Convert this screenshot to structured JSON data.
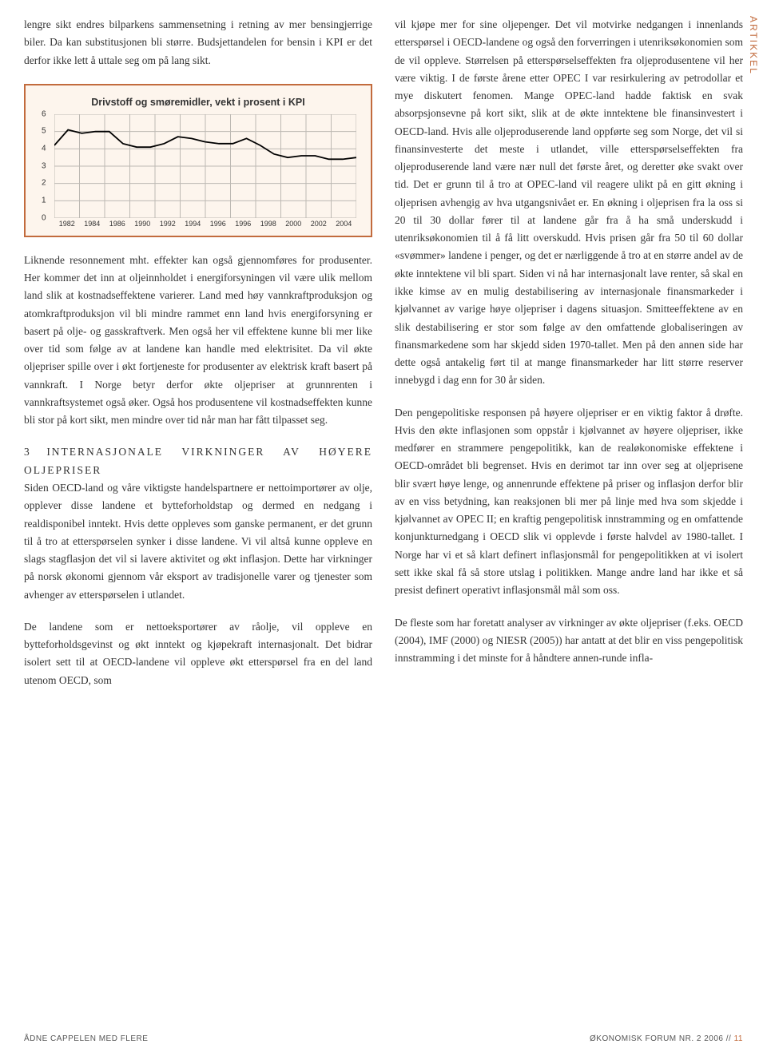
{
  "side_label": "ARTIKKEL",
  "left_column": {
    "p1": "lengre sikt endres bilparkens sammensetning i retning av mer bensingjerrige biler. Da kan substitusjonen bli større. Budsjettandelen for bensin i KPI er det derfor ikke lett å uttale seg om på lang sikt.",
    "p2": "Liknende resonnement mht. effekter kan også gjennomføres for produsenter. Her kommer det inn at oljeinnholdet i energiforsyningen vil være ulik mellom land slik at kostnadseffektene varierer. Land med høy vannkraftproduksjon og atomkraftproduksjon vil bli mindre rammet enn land hvis energiforsyning er basert på olje- og gasskraftverk. Men også her vil effektene kunne bli mer like over tid som følge av at landene kan handle med elektrisitet. Da vil økte oljepriser spille over i økt fortjeneste for produsenter av elektrisk kraft basert på vannkraft. I Norge betyr derfor økte oljepriser at grunnrenten i vannkraftsystemet også øker. Også hos produsentene vil kostnadseffekten kunne bli stor på kort sikt, men mindre over tid når man har fått tilpasset seg.",
    "section": {
      "num": "3",
      "title": "INTERNASJONALE VIRKNINGER AV HØYERE OLJEPRISER"
    },
    "p3": "Siden OECD-land og våre viktigste handelspartnere er nettoimportører av olje, opplever disse landene et bytteforholdstap og dermed en nedgang i realdisponibel inntekt. Hvis dette oppleves som ganske permanent, er det grunn til å tro at etterspørselen synker i disse landene. Vi vil altså kunne oppleve en slags stagflasjon det vil si lavere aktivitet og økt inflasjon. Dette har virkninger på norsk økonomi gjennom vår eksport av tradisjonelle varer og tjenester som avhenger av etterspørselen i utlandet.",
    "p4": "De landene som er nettoeksportører av råolje, vil oppleve en bytteforholdsgevinst og økt inntekt og kjøpekraft internasjonalt. Det bidrar isolert sett til at OECD-landene vil oppleve økt etterspørsel fra en del land utenom OECD, som"
  },
  "right_column": {
    "p1": "vil kjøpe mer for sine oljepenger. Det vil motvirke nedgangen i innenlands etterspørsel i OECD-landene og også den forverringen i utenriksøkonomien som de vil oppleve. Størrelsen på etterspørselseffekten fra oljeprodusentene vil her være viktig. I de første årene etter OPEC I var resirkulering av petrodollar et mye diskutert fenomen. Mange OPEC-land hadde faktisk en svak absorpsjonsevne på kort sikt, slik at de økte inntektene ble finansinvestert i OECD-land. Hvis alle oljeproduserende land oppførte seg som Norge, det vil si finansinvesterte det meste i utlandet, ville etterspørselseffekten fra oljeproduserende land være nær null det første året, og deretter øke svakt over tid. Det er grunn til å tro at OPEC-land vil reagere ulikt på en gitt økning i oljeprisen avhengig av hva utgangsnivået er. En økning i oljeprisen fra la oss si 20 til 30 dollar fører til at landene går fra å ha små underskudd i utenriksøkonomien til å få litt overskudd. Hvis prisen går fra 50 til 60 dollar «svømmer» landene i penger, og det er nærliggende å tro at en større andel av de økte inntektene vil bli spart. Siden vi nå har internasjonalt lave renter, så skal en ikke kimse av en mulig destabilisering av internasjonale finansmarkeder i kjølvannet av varige høye oljepriser i dagens situasjon. Smitteeffektene av en slik destabilisering er stor som følge av den omfattende globaliseringen av finansmarkedene som har skjedd siden 1970-tallet. Men på den annen side har dette også antakelig ført til at mange finansmarkeder har litt større reserver innebygd i dag enn for 30 år siden.",
    "p2": "Den pengepolitiske responsen på høyere oljepriser er en viktig faktor å drøfte. Hvis den økte inflasjonen som oppstår i kjølvannet av høyere oljepriser, ikke medfører en strammere pengepolitikk, kan de realøkonomiske effektene i OECD-området bli begrenset. Hvis en derimot tar inn over seg at oljeprisene blir svært høye lenge, og annenrunde effektene på priser og inflasjon derfor blir av en viss betydning, kan reaksjonen bli mer på linje med hva som skjedde i kjølvannet av OPEC II; en kraftig pengepolitisk innstramming og en omfattende konjunkturnedgang i OECD slik vi opplevde i første halvdel av 1980-tallet. I Norge har vi et så klart definert inflasjonsmål for pengepolitikken at vi isolert sett ikke skal få så store utslag i politikken. Mange andre land har ikke et så presist definert operativt inflasjonsmål mål som oss.",
    "p3": "De fleste som har foretatt analyser av virkninger av økte oljepriser (f.eks. OECD (2004), IMF (2000) og NIESR (2005)) har antatt at det blir en viss pengepolitisk innstramming i det minste for å håndtere annen-runde infla-"
  },
  "chart": {
    "type": "line",
    "title": "Drivstoff og smøremidler, vekt i prosent i KPI",
    "border_color": "#c26b3d",
    "background_color": "#fdf5ed",
    "line_color": "#000000",
    "grid_color": "#bdb9b3",
    "ylim": [
      0,
      6
    ],
    "ytick_step": 1,
    "yticks": [
      "0",
      "1",
      "2",
      "3",
      "4",
      "5",
      "6"
    ],
    "xlabels": [
      "1982",
      "1984",
      "1986",
      "1990",
      "1992",
      "1994",
      "1996",
      "1996",
      "1998",
      "2000",
      "2002",
      "2004"
    ],
    "xcount": 12,
    "values": [
      4.2,
      5.1,
      4.9,
      5.0,
      5.0,
      4.3,
      4.1,
      4.1,
      4.3,
      4.7,
      4.6,
      4.4,
      4.3,
      4.3,
      4.6,
      4.2,
      3.7,
      3.5,
      3.6,
      3.6,
      3.4,
      3.4,
      3.5
    ],
    "label_fontsize": 10,
    "title_fontsize": 12.5
  },
  "footer": {
    "left": "ÅDNE CAPPELEN MED FLERE",
    "right_prefix": "ØKONOMISK FORUM NR. 2 2006  //",
    "page": "11"
  }
}
